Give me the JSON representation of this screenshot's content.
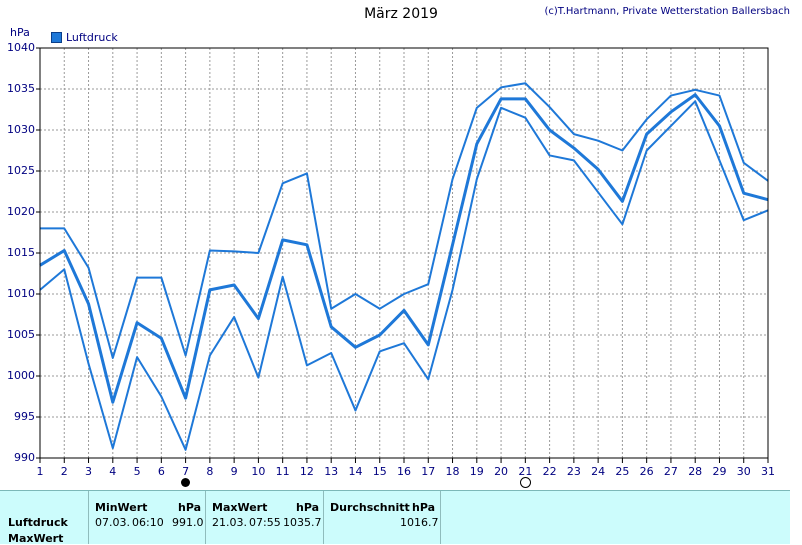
{
  "title": "März 2019",
  "copyright": "(c)T.Hartmann, Private Wetterstation Ballersbach",
  "chart_data": {
    "type": "line",
    "ylabel": "hPa",
    "legend": [
      {
        "name": "Luftdruck",
        "color": "#1e78d8"
      }
    ],
    "x": [
      1,
      2,
      3,
      4,
      5,
      6,
      7,
      8,
      9,
      10,
      11,
      12,
      13,
      14,
      15,
      16,
      17,
      18,
      19,
      20,
      21,
      22,
      23,
      24,
      25,
      26,
      27,
      28,
      29,
      30,
      31
    ],
    "ylim": [
      990,
      1040
    ],
    "yticks": [
      990,
      995,
      1000,
      1005,
      1010,
      1015,
      1020,
      1025,
      1030,
      1035,
      1040
    ],
    "grid": true,
    "series": [
      {
        "name": "max",
        "values": [
          1018.0,
          1018.0,
          1013.2,
          1002.2,
          1012.0,
          1012.0,
          1002.5,
          1015.3,
          1015.2,
          1015.0,
          1023.5,
          1024.7,
          1008.2,
          1010.0,
          1008.2,
          1010.0,
          1011.2,
          1024.0,
          1032.7,
          1035.2,
          1035.7,
          1032.8,
          1029.5,
          1028.7,
          1027.5,
          1031.3,
          1034.2,
          1034.9,
          1034.2,
          1026.0,
          1023.8
        ]
      },
      {
        "name": "avg",
        "values": [
          1013.5,
          1015.3,
          1008.8,
          996.8,
          1006.5,
          1004.6,
          997.3,
          1010.5,
          1011.1,
          1007.0,
          1016.6,
          1016.0,
          1006.0,
          1003.5,
          1005.0,
          1008.0,
          1003.8,
          1016.0,
          1028.3,
          1033.8,
          1033.8,
          1030.0,
          1027.8,
          1025.2,
          1021.3,
          1029.5,
          1032.2,
          1034.3,
          1030.5,
          1022.3,
          1021.5
        ]
      },
      {
        "name": "min",
        "values": [
          1010.5,
          1013.0,
          1001.5,
          991.2,
          1002.3,
          997.5,
          991.0,
          1002.5,
          1007.2,
          999.8,
          1012.1,
          1001.3,
          1002.8,
          995.8,
          1003.0,
          1004.0,
          999.6,
          1010.5,
          1024.0,
          1032.7,
          1031.5,
          1026.9,
          1026.3,
          1022.4,
          1018.5,
          1027.5,
          1030.5,
          1033.5,
          1026.3,
          1019.0,
          1020.2
        ]
      }
    ],
    "min_marker_day": 7,
    "max_marker_day": 21
  },
  "table": {
    "row_label_1": "Luftdruck",
    "row_label_2": "MaxWert",
    "min_header": "MinWert",
    "max_header": "MaxWert",
    "avg_header": "Durchschnitt",
    "unit": "hPa",
    "min_date": "07.03.",
    "min_time": "06:10",
    "min_value": "991.0",
    "max_date": "21.03.",
    "max_time": "07:55",
    "max_value": "1035.7",
    "avg_value": "1016.7"
  }
}
